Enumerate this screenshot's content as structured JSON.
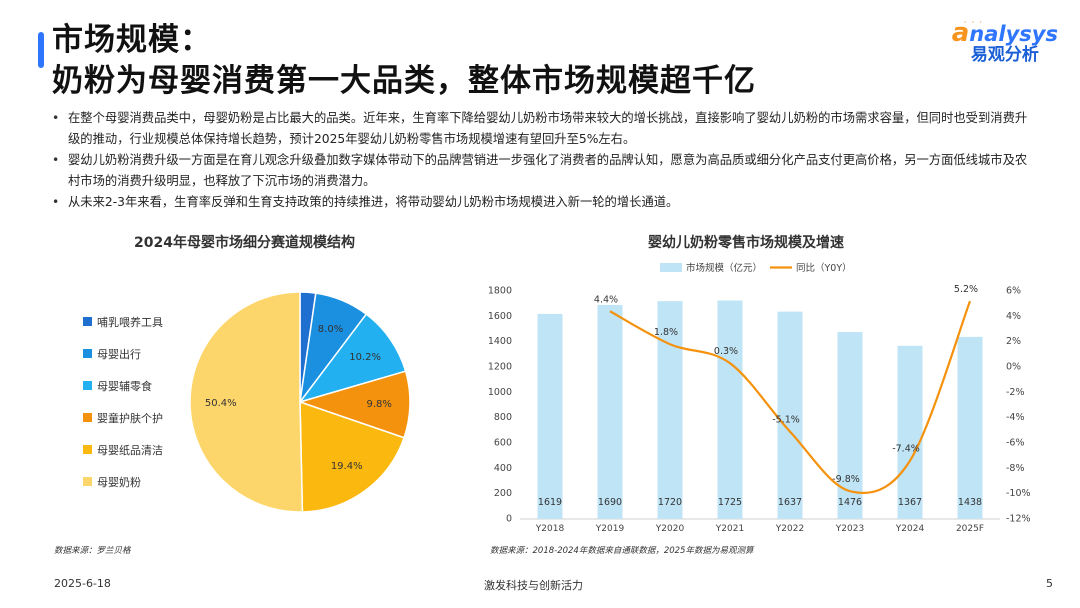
{
  "header": {
    "title_line1": "市场规模：",
    "title_line2": "奶粉为母婴消费第一大品类，整体市场规模超千亿"
  },
  "logo": {
    "brand_prefix": "a",
    "brand_rest": "nalysys",
    "sub": "易观分析"
  },
  "bullets": [
    "在整个母婴消费品类中，母婴奶粉是占比最大的品类。近年来，生育率下降给婴幼儿奶粉市场带来较大的增长挑战，直接影响了婴幼儿奶粉的市场需求容量，但同时也受到消费升级的推动，行业规模总体保持增长趋势，预计2025年婴幼儿奶粉零售市场规模增速有望回升至5%左右。",
    "婴幼儿奶粉消费升级一方面是在育儿观念升级叠加数字媒体带动下的品牌营销进一步强化了消费者的品牌认知，愿意为高品质或细分化产品支付更高价格，另一方面低线城市及农村市场的消费升级明显，也释放了下沉市场的消费潜力。",
    "从未来2-3年来看，生育率反弹和生育支持政策的持续推进，将带动婴幼儿奶粉市场规模进入新一轮的增长通道。"
  ],
  "chart_data": [
    {
      "type": "pie",
      "title": "2024年母婴市场细分赛道规模结构",
      "categories": [
        "哺乳喂养工具",
        "母婴出行",
        "母婴辅零食",
        "婴童护肤个护",
        "母婴纸品清洁",
        "母婴奶粉"
      ],
      "values": [
        2.3,
        8.0,
        10.2,
        9.8,
        19.4,
        50.4
      ],
      "value_labels": [
        "2.3%",
        "8.0%",
        "10.2%",
        "9.8%",
        "19.4%",
        "50.4%"
      ],
      "colors": [
        "#1f6fd1",
        "#1b8fe0",
        "#22b0f0",
        "#f5920d",
        "#fbb910",
        "#fdd66b"
      ],
      "legend_position": "left",
      "source": "数据来源：罗兰贝格"
    },
    {
      "type": "bar+line",
      "title": "婴幼儿奶粉零售市场规模及增速",
      "categories": [
        "Y2018",
        "Y2019",
        "Y2020",
        "Y2021",
        "Y2022",
        "Y2023",
        "Y2024",
        "2025F"
      ],
      "series": [
        {
          "name": "市场规模（亿元）",
          "type": "bar",
          "axis": "left",
          "color": "#bfe4f6",
          "values": [
            1619,
            1690,
            1720,
            1725,
            1637,
            1476,
            1367,
            1438
          ]
        },
        {
          "name": "同比（Y0Y）",
          "type": "line",
          "axis": "right",
          "color": "#f5920d",
          "values": [
            null,
            4.4,
            1.8,
            0.3,
            -5.1,
            -9.8,
            -7.4,
            5.2
          ],
          "labels": [
            "",
            "4.4%",
            "1.8%",
            "0.3%",
            "-5.1%",
            "-9.8%",
            "-7.4%",
            "5.2%"
          ]
        }
      ],
      "ylim_left": [
        0,
        1800
      ],
      "yticks_left": [
        "0",
        "200",
        "400",
        "600",
        "800",
        "1000",
        "1200",
        "1400",
        "1600",
        "1800"
      ],
      "ylim_right": [
        -12,
        6
      ],
      "yticks_right": [
        "-12%",
        "-10%",
        "-8%",
        "-6%",
        "-4%",
        "-2%",
        "0%",
        "2%",
        "4%",
        "6%"
      ],
      "legend_position": "top",
      "grid": false,
      "source": "数据来源：2018-2024年数据来自通联数据，2025年数据为易观测算"
    }
  ],
  "footer": {
    "date": "2025-6-18",
    "slogan": "激发科技与创新活力",
    "page": "5"
  }
}
